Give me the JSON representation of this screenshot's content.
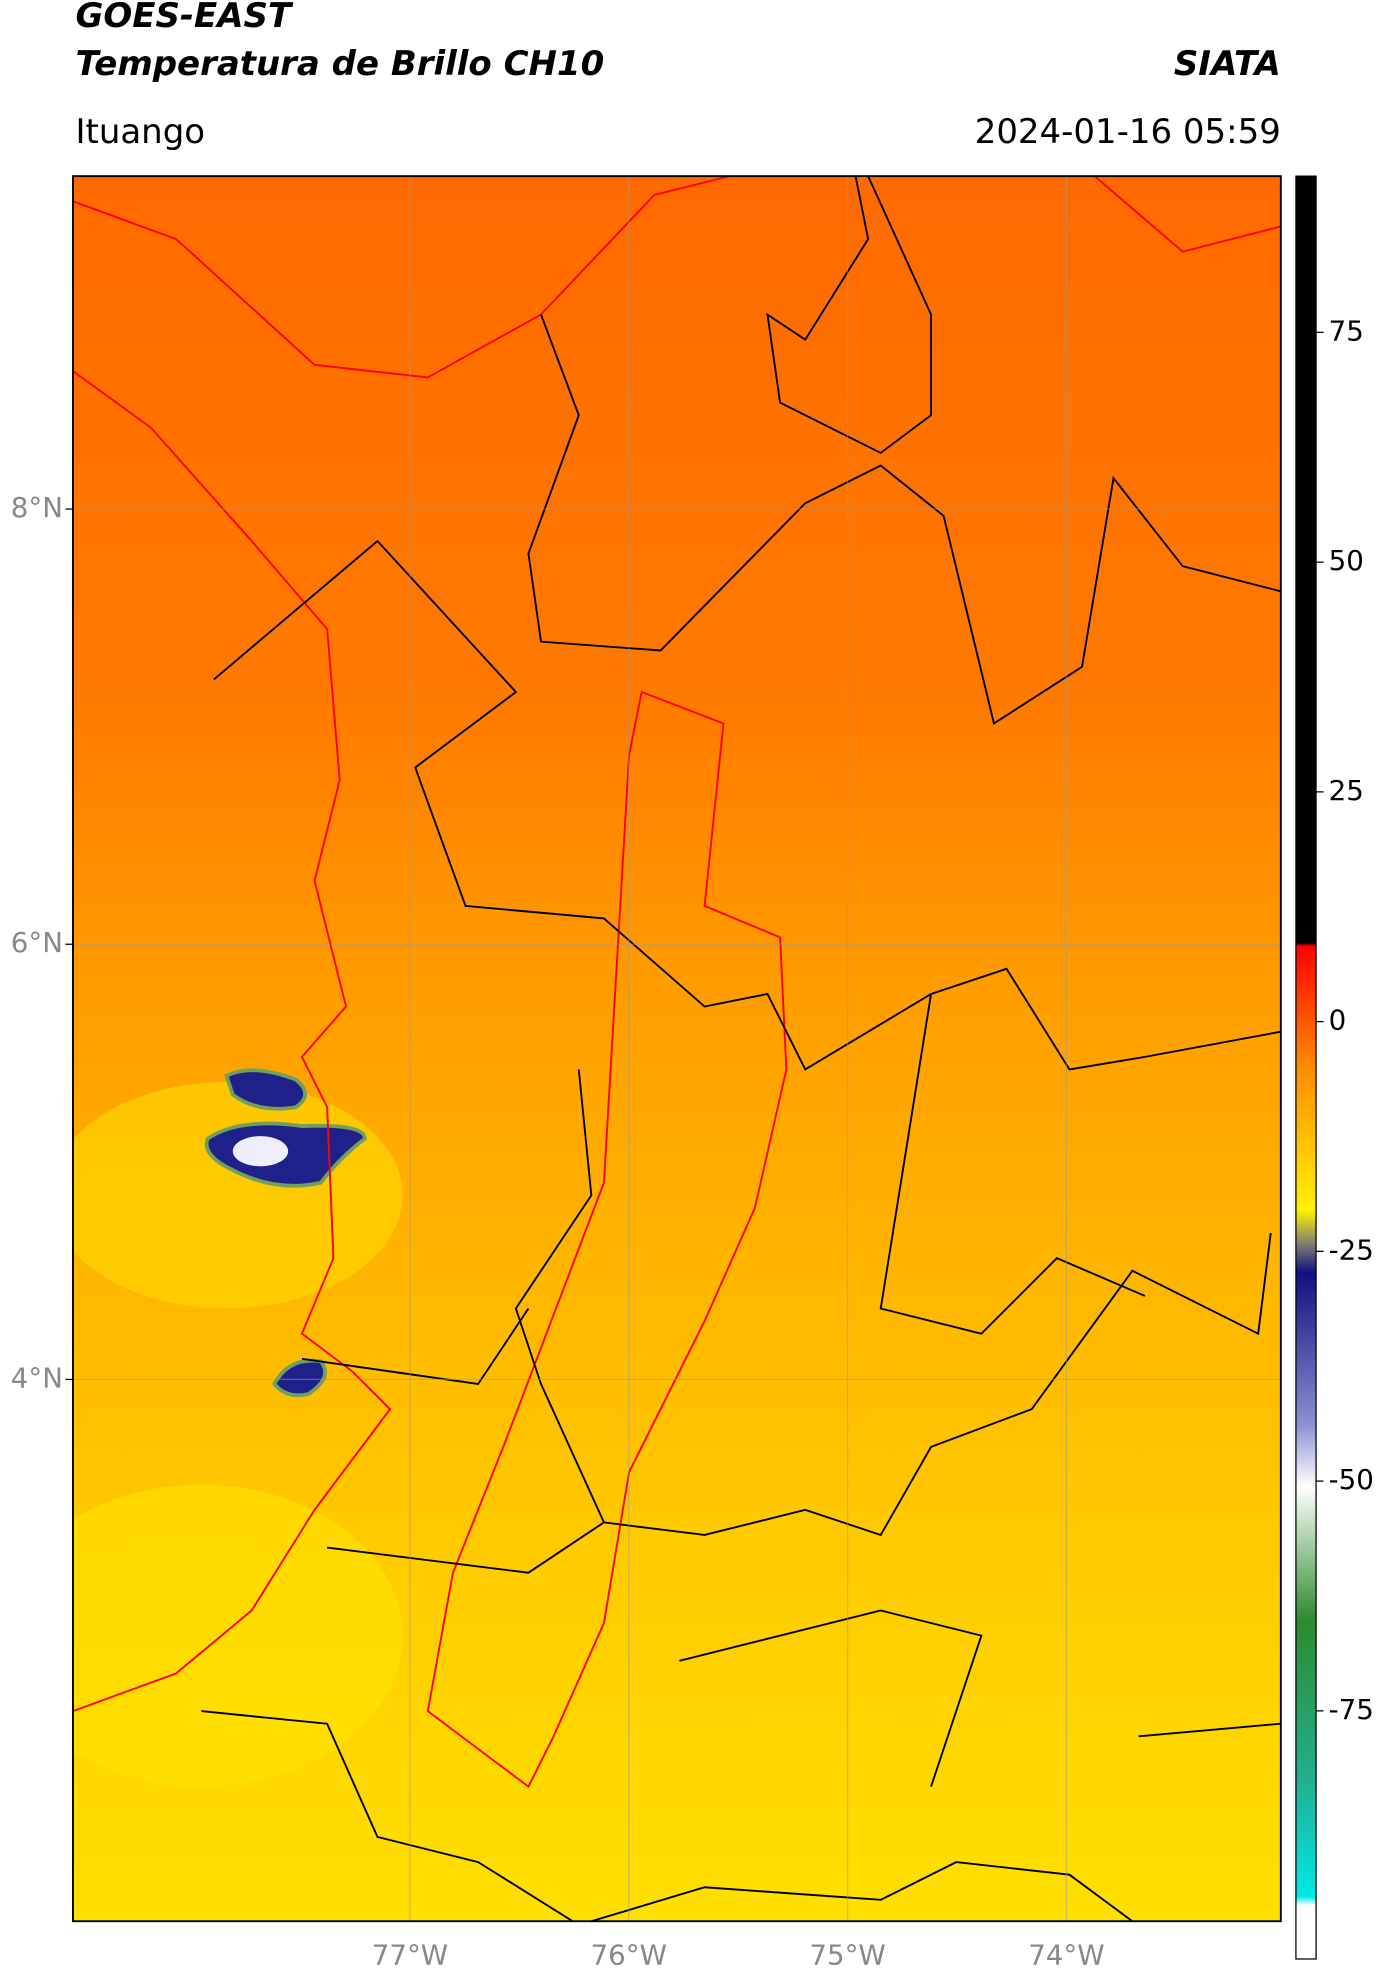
{
  "header": {
    "title": "GOES-EAST",
    "subtitle": "Temperatura de Brillo CH10",
    "source": "SIATA",
    "location": "Ituango",
    "timestamp": "2024-01-16 05:59"
  },
  "map": {
    "xlim": [
      -78.54,
      -73.02
    ],
    "ylim": [
      1.51,
      9.53
    ],
    "grid": true,
    "xticks": [
      {
        "value": -77,
        "label": "77°W"
      },
      {
        "value": -76,
        "label": "76°W"
      },
      {
        "value": -75,
        "label": "75°W"
      },
      {
        "value": -74,
        "label": "74°W"
      }
    ],
    "yticks": [
      {
        "value": 8,
        "label": "8°N"
      },
      {
        "value": 6,
        "label": "6°N"
      },
      {
        "value": 4,
        "label": "4°N"
      }
    ]
  },
  "colorbar": {
    "lim": [
      -102,
      92
    ],
    "ticks": [
      75,
      50,
      25,
      0,
      -25,
      -50,
      -75
    ]
  }
}
